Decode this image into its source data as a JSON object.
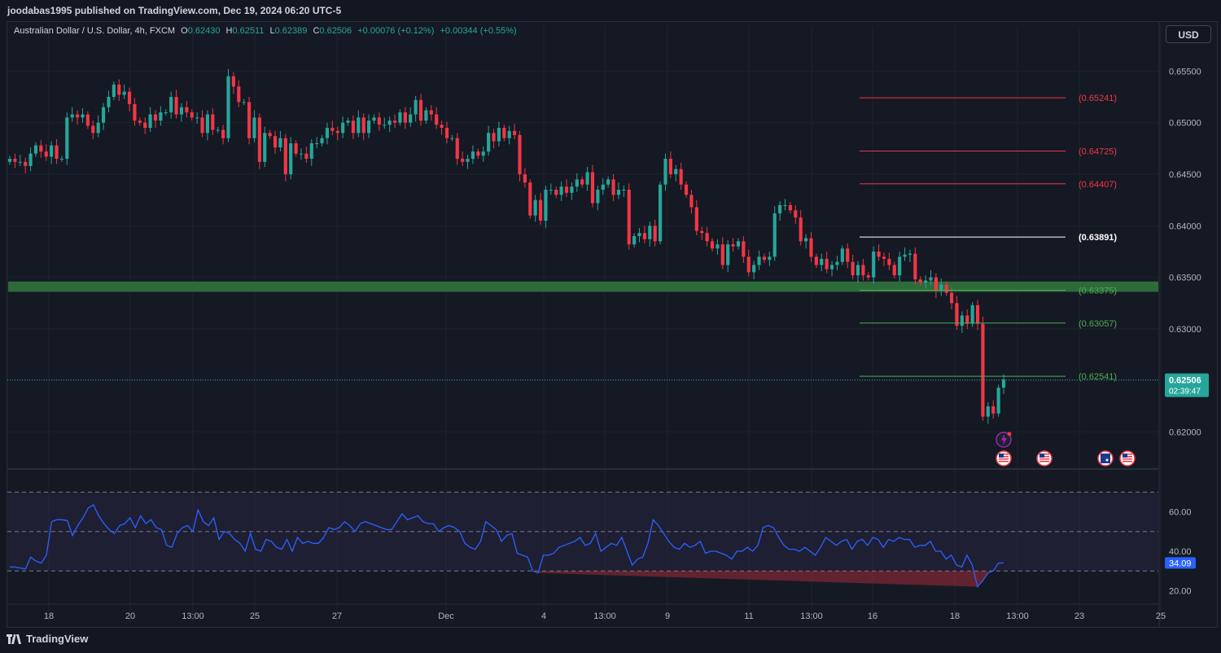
{
  "header": {
    "published_by": "joodabas1995 published on TradingView.com, Dec 19, 2024 06:20 UTC-5"
  },
  "legend": {
    "symbol": "Australian Dollar / U.S. Dollar, 4h, FXCM",
    "open_label": "O",
    "open": "0.62430",
    "high_label": "H",
    "high": "0.62511",
    "low_label": "L",
    "low": "0.62389",
    "close_label": "C",
    "close": "0.62506",
    "change": "+0.00076 (+0.12%)",
    "change2": "+0.00344 (+0.55%)"
  },
  "currency_button": "USD",
  "footer": {
    "brand": "TradingView"
  },
  "colors": {
    "up": "#26a69a",
    "down": "#f23645",
    "rsi_line": "#2962ff",
    "support_zone": "#2e6b3a",
    "level_red": "#f23645",
    "level_green": "#4caf50",
    "level_white": "#ffffff"
  },
  "chart_data": [
    {
      "type": "candlestick",
      "symbol": "AUDUSD",
      "timeframe": "4h",
      "y_axis": {
        "min": 0.6165,
        "max": 0.657,
        "ticks": [
          "0.65500",
          "0.65000",
          "0.64500",
          "0.64000",
          "0.63500",
          "0.63000",
          "0.62500",
          "0.62000"
        ]
      },
      "x_ticks": [
        "18",
        "20",
        "13:00",
        "25",
        "27",
        "Dec",
        "4",
        "13:00",
        "9",
        "11",
        "13:00",
        "16",
        "18",
        "13:00",
        "23",
        "25"
      ],
      "closes": [
        0.6465,
        0.6462,
        0.6462,
        0.6458,
        0.647,
        0.6478,
        0.6472,
        0.6467,
        0.6478,
        0.6465,
        0.6465,
        0.6505,
        0.6508,
        0.6505,
        0.6508,
        0.6497,
        0.649,
        0.65,
        0.6515,
        0.6525,
        0.6537,
        0.6527,
        0.653,
        0.6518,
        0.6502,
        0.65,
        0.6495,
        0.6508,
        0.6502,
        0.651,
        0.651,
        0.6525,
        0.6508,
        0.6515,
        0.651,
        0.6505,
        0.6505,
        0.649,
        0.6508,
        0.6493,
        0.6493,
        0.6485,
        0.6545,
        0.6535,
        0.652,
        0.652,
        0.6485,
        0.6505,
        0.6462,
        0.649,
        0.6487,
        0.6476,
        0.6485,
        0.645,
        0.648,
        0.647,
        0.647,
        0.6465,
        0.648,
        0.648,
        0.6485,
        0.6495,
        0.6492,
        0.649,
        0.65,
        0.6502,
        0.649,
        0.6505,
        0.649,
        0.6502,
        0.6505,
        0.6498,
        0.6498,
        0.6502,
        0.65,
        0.651,
        0.65,
        0.6508,
        0.6522,
        0.6502,
        0.6512,
        0.6508,
        0.6498,
        0.6495,
        0.6485,
        0.6485,
        0.6465,
        0.6462,
        0.6465,
        0.6472,
        0.6468,
        0.6472,
        0.649,
        0.6482,
        0.6495,
        0.6485,
        0.6492,
        0.6488,
        0.645,
        0.6442,
        0.641,
        0.6425,
        0.6405,
        0.6435,
        0.6435,
        0.643,
        0.6438,
        0.6432,
        0.6438,
        0.6445,
        0.644,
        0.6452,
        0.6422,
        0.6435,
        0.644,
        0.6445,
        0.643,
        0.6435,
        0.6435,
        0.6382,
        0.639,
        0.6393,
        0.6387,
        0.64,
        0.6385,
        0.644,
        0.6465,
        0.645,
        0.6455,
        0.644,
        0.643,
        0.6418,
        0.6395,
        0.6393,
        0.6385,
        0.6378,
        0.6382,
        0.6362,
        0.6382,
        0.638,
        0.6385,
        0.637,
        0.6355,
        0.6362,
        0.637,
        0.6367,
        0.637,
        0.6412,
        0.642,
        0.642,
        0.6415,
        0.6408,
        0.6385,
        0.6388,
        0.637,
        0.6362,
        0.6368,
        0.6358,
        0.6362,
        0.6365,
        0.6378,
        0.6365,
        0.6352,
        0.6362,
        0.6352,
        0.635,
        0.6375,
        0.637,
        0.6368,
        0.6362,
        0.6352,
        0.637,
        0.6372,
        0.6373,
        0.6348,
        0.6345,
        0.6347,
        0.635,
        0.6337,
        0.6343,
        0.6335,
        0.6325,
        0.6303,
        0.6313,
        0.6305,
        0.6323,
        0.6305,
        0.6215,
        0.6225,
        0.6218,
        0.6243,
        0.6251
      ],
      "current_price": "0.62506",
      "countdown": "02:39:47",
      "levels": [
        {
          "label": "(0.65241)",
          "value": 0.65241,
          "kind": "red"
        },
        {
          "label": "(0.64725)",
          "value": 0.64725,
          "kind": "red"
        },
        {
          "label": "(0.64407)",
          "value": 0.64407,
          "kind": "red"
        },
        {
          "label": "(0.63891)",
          "value": 0.63891,
          "kind": "white"
        },
        {
          "label": "(0.63375)",
          "value": 0.63375,
          "kind": "green"
        },
        {
          "label": "(0.63057)",
          "value": 0.63057,
          "kind": "green"
        },
        {
          "label": "(0.62541)",
          "value": 0.62541,
          "kind": "green"
        }
      ],
      "support_zone": {
        "low": 0.6336,
        "high": 0.6346
      }
    },
    {
      "type": "line",
      "indicator": "RSI",
      "y_axis": {
        "min": 14,
        "max": 78,
        "ticks": [
          "60.00",
          "40.00",
          "20.00"
        ],
        "bands": [
          70,
          50,
          30
        ]
      },
      "current_value": "34.09",
      "values": [
        32,
        32,
        31.5,
        31,
        37,
        35,
        34,
        38,
        55,
        56,
        56,
        55.5,
        48,
        53,
        57,
        62,
        63.5,
        58,
        54,
        51,
        49,
        53,
        54,
        57,
        52,
        58,
        54,
        56,
        52,
        51,
        43,
        42,
        49,
        52,
        53,
        50,
        61,
        55,
        53,
        57,
        46,
        50,
        49,
        46,
        44,
        40,
        49,
        41,
        40,
        46,
        45,
        42,
        41,
        46,
        40,
        47,
        44,
        45,
        44,
        44,
        47,
        52,
        51,
        52,
        55,
        53,
        50,
        54,
        55,
        54,
        53,
        52,
        51,
        51,
        55,
        59,
        56,
        57,
        58,
        55,
        54,
        54,
        50,
        52,
        53,
        52,
        50,
        44,
        42,
        41,
        45,
        55,
        53,
        51,
        45,
        48,
        49,
        39,
        38,
        37,
        30,
        29,
        38,
        38,
        39,
        42,
        43,
        44,
        45,
        47,
        43,
        44,
        49,
        40,
        42,
        44,
        43,
        47,
        40,
        33,
        36,
        37,
        44,
        56,
        53,
        49,
        45,
        42,
        41,
        44,
        42,
        43,
        45,
        39,
        40,
        40,
        39,
        38,
        36,
        40,
        40,
        42,
        40,
        43,
        52,
        53,
        52,
        47,
        43,
        41,
        41,
        40,
        42,
        40,
        38,
        42,
        47,
        45,
        43,
        45,
        46,
        41,
        45,
        46,
        43,
        47,
        46,
        42,
        46,
        45,
        47,
        46,
        46,
        42,
        43,
        43,
        45,
        40,
        40,
        36,
        38,
        33,
        32,
        38,
        33,
        22,
        25,
        29,
        30,
        34,
        34.09
      ]
    }
  ]
}
